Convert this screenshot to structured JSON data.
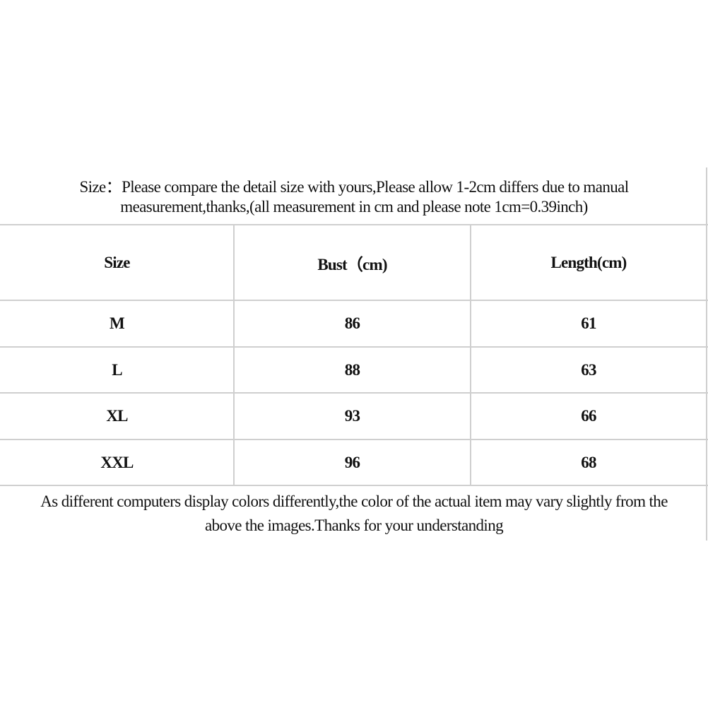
{
  "intro": {
    "line1": "Size：Please compare the detail size with yours,Please allow 1-2cm differs due to manual",
    "line2": "measurement,thanks,(all measurement in cm and please note 1cm=0.39inch)"
  },
  "table": {
    "headers": [
      "Size",
      "Bust（cm)",
      "Length(cm)"
    ],
    "rows": [
      [
        "M",
        "86",
        "61"
      ],
      [
        "L",
        "88",
        "63"
      ],
      [
        "XL",
        "93",
        "66"
      ],
      [
        "XXL",
        "96",
        "68"
      ]
    ]
  },
  "footer": {
    "line1": "As different computers display colors differently,the color of the actual item may vary slightly from the",
    "line2": "above the images.Thanks for your understanding"
  },
  "colors": {
    "grid": "#cfcfcf",
    "text": "#111111"
  }
}
